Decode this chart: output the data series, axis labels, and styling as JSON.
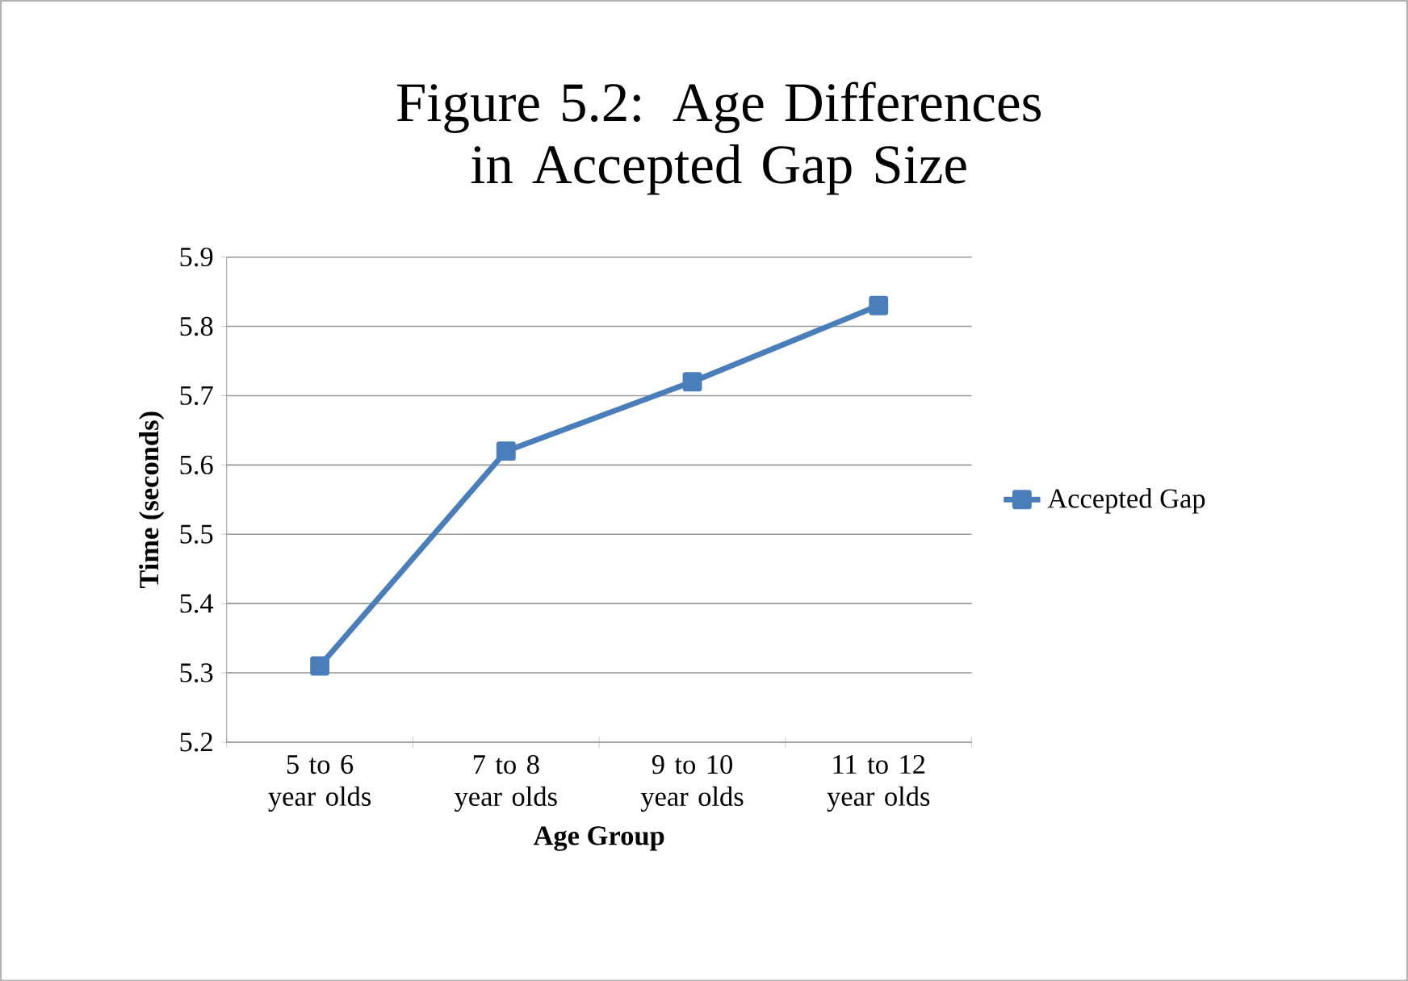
{
  "chart_data": {
    "type": "line",
    "title": "Figure 5.2: Age Differences in Accepted Gap Size",
    "xlabel": "Age Group",
    "ylabel": "Time (seconds)",
    "categories": [
      "5 to 6 year olds",
      "7 to 8 year olds",
      "9 to 10 year olds",
      "11 to 12 year olds"
    ],
    "series": [
      {
        "name": "Accepted Gap",
        "color": "#4a7ebb",
        "values": [
          5.31,
          5.62,
          5.72,
          5.83
        ]
      }
    ],
    "ylim": [
      5.2,
      5.9
    ],
    "yticks": [
      5.2,
      5.3,
      5.4,
      5.5,
      5.6,
      5.7,
      5.8,
      5.9
    ],
    "grid": "y",
    "legend": "right",
    "marker": "square",
    "line_style": "solid"
  }
}
